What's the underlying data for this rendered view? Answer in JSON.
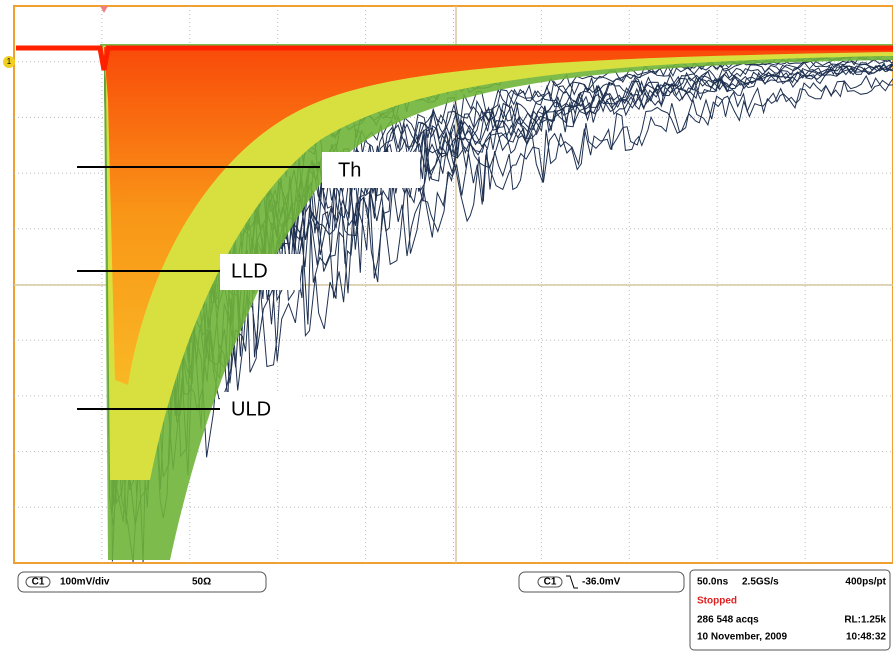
{
  "labels": {
    "threshold": "Th",
    "lld": "LLD",
    "uld": "ULD"
  },
  "marker": "1",
  "channel": {
    "name": "C1",
    "scale": "100mV/div",
    "impedance": "50Ω"
  },
  "trigger": {
    "channel": "C1",
    "level": "-36.0mV"
  },
  "acquisition": {
    "timebase": "50.0ns",
    "sample_rate": "2.5GS/s",
    "resolution": "400ps/pt",
    "state": "Stopped",
    "acquisitions": "286 548 acqs",
    "record_length": "RL:1.25k",
    "date": "10 November, 2009",
    "time": "10:48:32"
  }
}
